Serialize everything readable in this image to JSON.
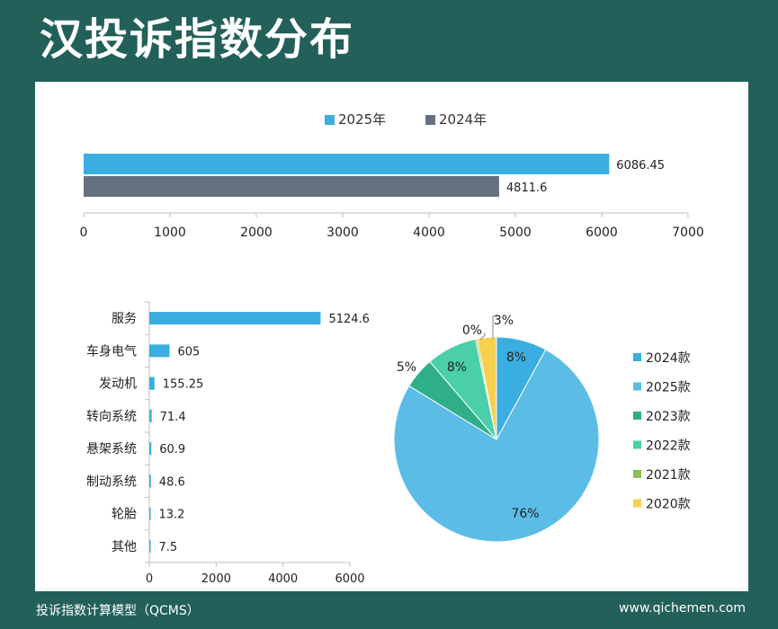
{
  "page": {
    "title": "汉投诉指数分布",
    "footer_left": "投诉指数计算模型（QCMS）",
    "footer_right": "www.qichemen.com"
  },
  "colors": {
    "background": "#236059",
    "blue": "#3aaee0",
    "gray": "#65717f"
  },
  "chart_data": [
    {
      "type": "bar",
      "orientation": "horizontal",
      "series": [
        {
          "name": "2025年",
          "values": [
            6086.45
          ],
          "labels": [
            "6086.45"
          ],
          "color": "#3aaee0"
        },
        {
          "name": "2024年",
          "values": [
            4811.6
          ],
          "labels": [
            "4811.6"
          ],
          "color": "#65717f"
        }
      ],
      "xlim": [
        0,
        7000
      ],
      "xticks": [
        0,
        1000,
        2000,
        3000,
        4000,
        5000,
        6000,
        7000
      ],
      "legend": "top"
    },
    {
      "type": "bar",
      "orientation": "horizontal",
      "categories": [
        "服务",
        "车身电气",
        "发动机",
        "转向系统",
        "悬架系统",
        "制动系统",
        "轮胎",
        "其他"
      ],
      "values": [
        5124.6,
        605,
        155.25,
        71.4,
        60.9,
        48.6,
        13.2,
        7.5
      ],
      "labels": [
        "5124.6",
        "605",
        "155.25",
        "71.4",
        "60.9",
        "48.6",
        "13.2",
        "7.5"
      ],
      "color": "#3aaee0",
      "xlim": [
        0,
        6000
      ],
      "xticks": [
        0,
        2000,
        4000,
        6000
      ]
    },
    {
      "type": "pie",
      "categories": [
        "2024款",
        "2025款",
        "2023款",
        "2022款",
        "2021款",
        "2020款"
      ],
      "values": [
        8,
        76,
        5,
        8,
        0.3,
        3
      ],
      "labels": [
        "8%",
        "76%",
        "5%",
        "8%",
        "0%",
        "3%"
      ],
      "colors": [
        "#3aaee0",
        "#5bbde6",
        "#2fae8a",
        "#4bcfa8",
        "#8ac054",
        "#f9cf4e"
      ],
      "legend": "right"
    }
  ]
}
